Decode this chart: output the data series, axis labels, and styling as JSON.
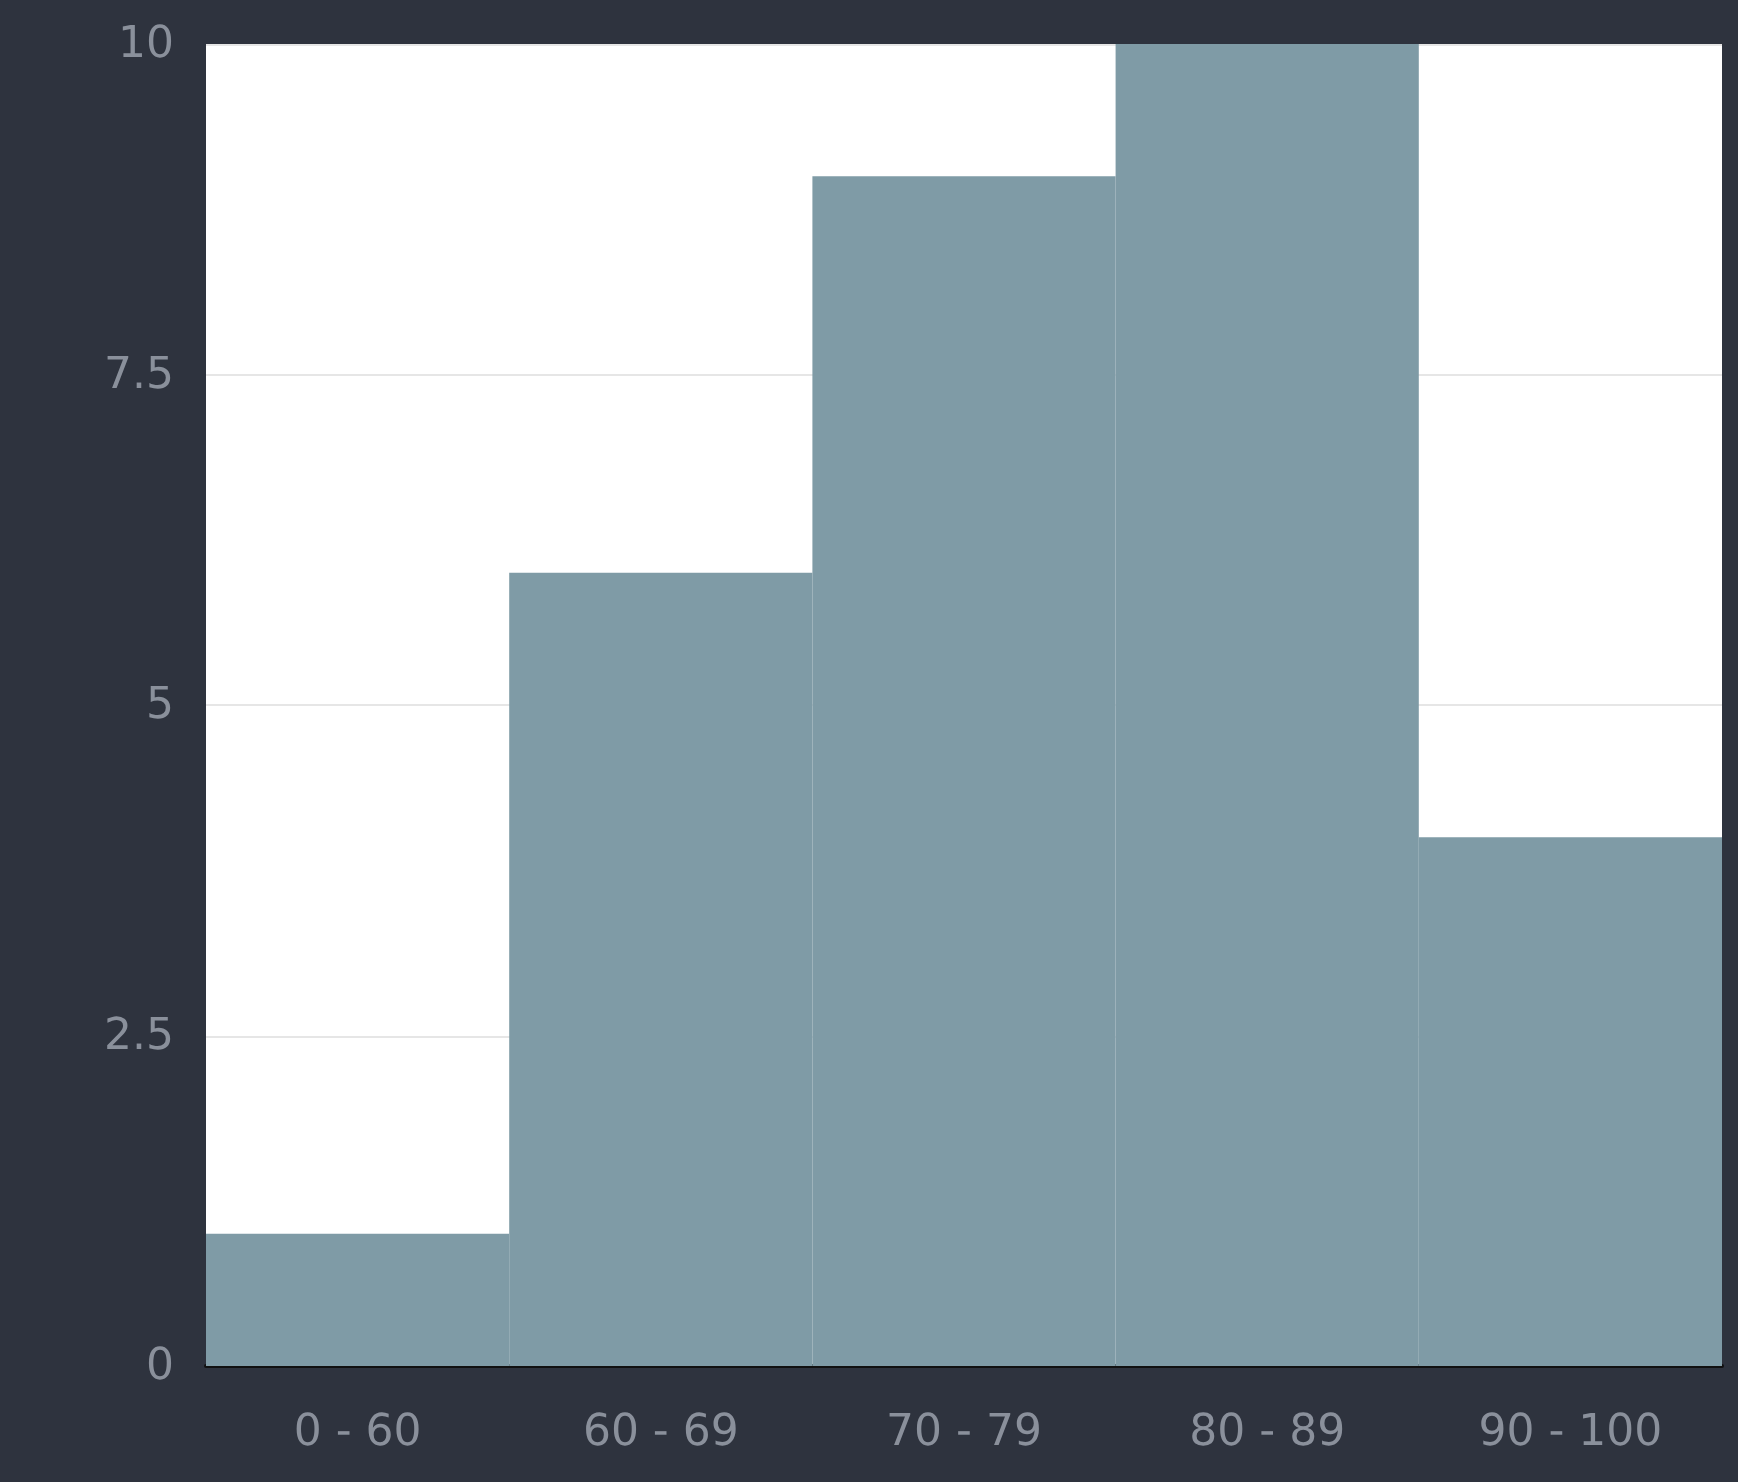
{
  "chart_data": {
    "type": "bar",
    "categories": [
      "0 - 60",
      "60 - 69",
      "70 - 79",
      "80 - 89",
      "90 - 100"
    ],
    "values": [
      1,
      6,
      9,
      10,
      4
    ],
    "color": "#7f9ba6",
    "ylim": [
      0,
      10
    ],
    "yticks": [
      0,
      2.5,
      5,
      7.5,
      10
    ],
    "grid": "y"
  }
}
